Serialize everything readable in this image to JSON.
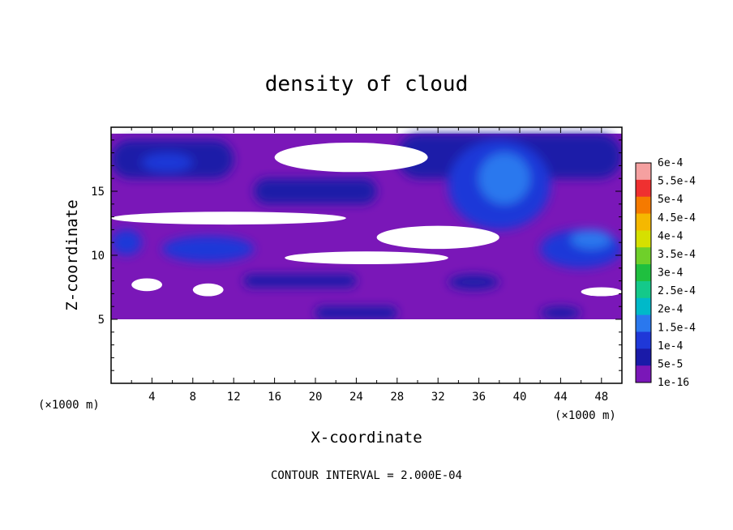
{
  "chart_data": {
    "type": "heatmap",
    "title": "density of cloud",
    "xlabel": "X-coordinate",
    "ylabel": "Z-coordinate",
    "x_unit": "(×1000 m)",
    "z_unit": "(×1000 m)",
    "xlim": [
      0,
      50
    ],
    "ylim": [
      0,
      20
    ],
    "x_ticks": [
      "4",
      "8",
      "12",
      "16",
      "20",
      "24",
      "28",
      "32",
      "36",
      "40",
      "44",
      "48"
    ],
    "y_ticks": [
      "5",
      "10",
      "15"
    ],
    "colorbar": {
      "labels": [
        "1e-16",
        "5e-5",
        "1e-4",
        "1.5e-4",
        "2e-4",
        "2.5e-4",
        "3e-4",
        "3.5e-4",
        "4e-4",
        "4.5e-4",
        "5e-4",
        "5.5e-4",
        "6e-4"
      ],
      "colors": [
        "#7a17b8",
        "#1a1aa8",
        "#1f38d8",
        "#2a78ee",
        "#00b9c9",
        "#14c98a",
        "#1fbf3f",
        "#6fd02a",
        "#d6e000",
        "#f5b800",
        "#f57a00",
        "#ef3030",
        "#f5a0a0"
      ]
    },
    "contour_interval": "CONTOUR INTERVAL = 2.000E-04",
    "cloud_base_z": 5,
    "cloud_top_z": 19.5,
    "regions": [
      {
        "level": "5e-5",
        "x": [
          0,
          12
        ],
        "z": [
          16,
          19
        ],
        "shape": "band"
      },
      {
        "level": "1e-4",
        "x": [
          3,
          8
        ],
        "z": [
          16.5,
          18
        ],
        "shape": "blob"
      },
      {
        "level": "5e-5",
        "x": [
          14,
          26
        ],
        "z": [
          14,
          16
        ],
        "shape": "band"
      },
      {
        "level": "5e-5",
        "x": [
          28,
          50
        ],
        "z": [
          16,
          19.5
        ],
        "shape": "band"
      },
      {
        "level": "1e-4",
        "x": [
          33,
          43
        ],
        "z": [
          12,
          19
        ],
        "shape": "blob"
      },
      {
        "level": "1.5e-4",
        "x": [
          36,
          41
        ],
        "z": [
          14,
          18
        ],
        "shape": "blob"
      },
      {
        "level": "1e-4",
        "x": [
          42,
          50
        ],
        "z": [
          9,
          12
        ],
        "shape": "blob"
      },
      {
        "level": "1.5e-4",
        "x": [
          45,
          49
        ],
        "z": [
          10.5,
          12
        ],
        "shape": "blob"
      },
      {
        "level": "1e-4",
        "x": [
          0,
          3
        ],
        "z": [
          10,
          12
        ],
        "shape": "blob"
      },
      {
        "level": "1e-4",
        "x": [
          5,
          14
        ],
        "z": [
          9.5,
          11.5
        ],
        "shape": "blob"
      },
      {
        "level": "5e-5",
        "x": [
          13,
          24
        ],
        "z": [
          7.5,
          8.5
        ],
        "shape": "band"
      },
      {
        "level": "5e-5",
        "x": [
          33,
          38
        ],
        "z": [
          7.3,
          8.5
        ],
        "shape": "blob"
      },
      {
        "level": "5e-5",
        "x": [
          42,
          46
        ],
        "z": [
          5,
          6
        ],
        "shape": "blob"
      },
      {
        "level": "5e-5",
        "x": [
          20,
          28
        ],
        "z": [
          5,
          6
        ],
        "shape": "band"
      }
    ],
    "clear_regions": [
      {
        "x": [
          16,
          31
        ],
        "z": [
          16.5,
          18.8
        ]
      },
      {
        "x": [
          0,
          23
        ],
        "z": [
          12.4,
          13.4
        ]
      },
      {
        "x": [
          26,
          38
        ],
        "z": [
          10.5,
          12.3
        ]
      },
      {
        "x": [
          17,
          33
        ],
        "z": [
          9.3,
          10.3
        ]
      },
      {
        "x": [
          2,
          5
        ],
        "z": [
          7.2,
          8.2
        ]
      },
      {
        "x": [
          8,
          11
        ],
        "z": [
          6.8,
          7.8
        ]
      },
      {
        "x": [
          46,
          50
        ],
        "z": [
          6.8,
          7.5
        ]
      },
      {
        "x": [
          0,
          50
        ],
        "z": [
          0,
          5
        ]
      }
    ]
  }
}
